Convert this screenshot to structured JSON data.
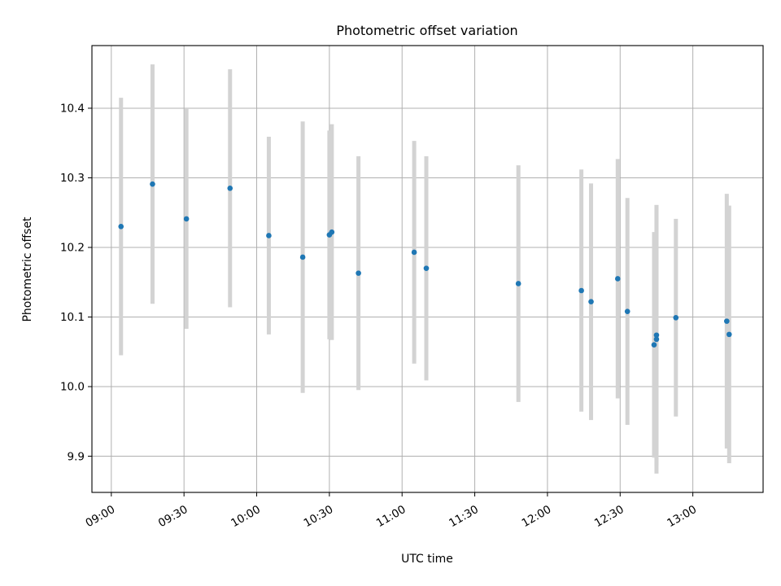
{
  "chart_data": {
    "type": "scatter",
    "title": "Photometric offset variation",
    "xlabel": "UTC time",
    "ylabel": "Photometric offset",
    "x_axis_type": "time",
    "xlim": [
      "08:52",
      "13:29"
    ],
    "ylim": [
      9.848,
      10.49
    ],
    "x_ticks": [
      "09:00",
      "09:30",
      "10:00",
      "10:30",
      "11:00",
      "11:30",
      "12:00",
      "12:30",
      "13:00"
    ],
    "y_ticks": [
      9.9,
      10.0,
      10.1,
      10.2,
      10.3,
      10.4
    ],
    "y_tick_labels": [
      "9.9",
      "10.0",
      "10.1",
      "10.2",
      "10.3",
      "10.4"
    ],
    "grid": true,
    "legend": "none",
    "marker_color": "#1f77b4",
    "errorbar_color": "#d3d3d3",
    "points": [
      {
        "x": "09:04",
        "y": 10.23,
        "err": 0.185
      },
      {
        "x": "09:17",
        "y": 10.291,
        "err": 0.172
      },
      {
        "x": "09:31",
        "y": 10.241,
        "err": 0.158
      },
      {
        "x": "09:49",
        "y": 10.285,
        "err": 0.171
      },
      {
        "x": "10:05",
        "y": 10.217,
        "err": 0.142
      },
      {
        "x": "10:19",
        "y": 10.186,
        "err": 0.195
      },
      {
        "x": "10:30",
        "y": 10.218,
        "err": 0.15
      },
      {
        "x": "10:31",
        "y": 10.222,
        "err": 0.155
      },
      {
        "x": "10:42",
        "y": 10.163,
        "err": 0.168
      },
      {
        "x": "11:05",
        "y": 10.193,
        "err": 0.16
      },
      {
        "x": "11:10",
        "y": 10.17,
        "err": 0.161
      },
      {
        "x": "11:48",
        "y": 10.148,
        "err": 0.17
      },
      {
        "x": "12:14",
        "y": 10.138,
        "err": 0.174
      },
      {
        "x": "12:18",
        "y": 10.122,
        "err": 0.17
      },
      {
        "x": "12:29",
        "y": 10.155,
        "err": 0.172
      },
      {
        "x": "12:33",
        "y": 10.108,
        "err": 0.163
      },
      {
        "x": "12:44",
        "y": 10.06,
        "err": 0.162
      },
      {
        "x": "12:45",
        "y": 10.074,
        "err": 0.187
      },
      {
        "x": "12:45",
        "y": 10.068,
        "err": 0.193
      },
      {
        "x": "12:53",
        "y": 10.099,
        "err": 0.142
      },
      {
        "x": "13:14",
        "y": 10.094,
        "err": 0.183
      },
      {
        "x": "13:15",
        "y": 10.075,
        "err": 0.185
      }
    ]
  }
}
